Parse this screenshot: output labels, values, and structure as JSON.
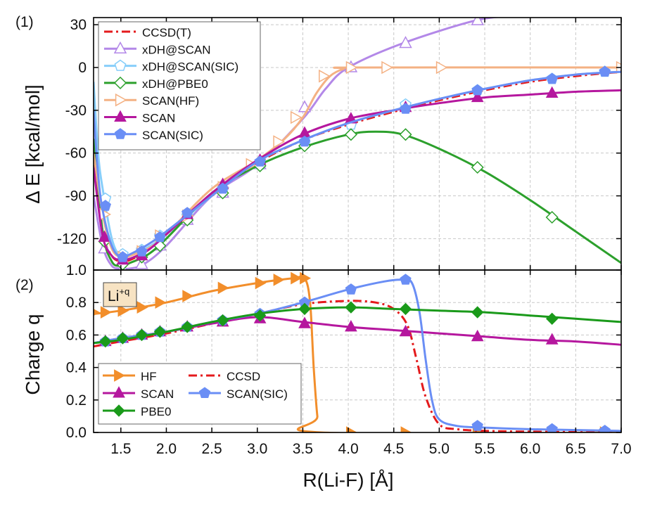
{
  "chart_data": [
    {
      "panel_label": "(1)",
      "type": "line",
      "ylabel": "Δ E [kcal/mol]",
      "xlim": [
        1.2,
        7.0
      ],
      "ylim": [
        -142,
        35
      ],
      "yticks": [
        30,
        0,
        -30,
        -60,
        -90,
        -120
      ],
      "ytick_labels": [
        "30",
        "0",
        "-30",
        "-60",
        "-90",
        "-120"
      ],
      "grid": true,
      "legend_position": "top-left",
      "series": [
        {
          "name": "CCSD(T)",
          "color": "#e41a1c",
          "dash": "dashdot",
          "marker": "none",
          "x": [
            1.2,
            1.3,
            1.4,
            1.5,
            1.6,
            1.8,
            2.0,
            2.2,
            2.5,
            3.0,
            3.5,
            4.0,
            4.5,
            5.0,
            5.5,
            6.0,
            6.5,
            7.0
          ],
          "y": [
            -60,
            -115,
            -132,
            -136,
            -135,
            -128,
            -117,
            -106,
            -90,
            -67,
            -51,
            -40,
            -31,
            -23,
            -16,
            -10,
            -6,
            -3
          ]
        },
        {
          "name": "xDH@SCAN",
          "color": "#b388e8",
          "marker": "triangle-open",
          "x": [
            1.2,
            1.3,
            1.4,
            1.5,
            1.6,
            1.75,
            2.0,
            2.5,
            3.0,
            3.5,
            3.75,
            4.0,
            4.6,
            5.4,
            5.8
          ],
          "y": [
            -90,
            -125,
            -139,
            -141,
            -141,
            -138,
            -125,
            -90,
            -68,
            -36,
            -15,
            0,
            17,
            33,
            36
          ],
          "marker_x": [
            1.32,
            1.52,
            1.73,
            1.93,
            2.23,
            2.62,
            3.03,
            3.52,
            4.03,
            4.63,
            5.42
          ],
          "marker_y": [
            -127,
            -141,
            -138,
            -125,
            -107,
            -88,
            -68,
            -28,
            0,
            17,
            33
          ]
        },
        {
          "name": "xDH@SCAN(SIC)",
          "color": "#87cefa",
          "marker": "pentagon-open",
          "x": [
            1.2,
            1.25,
            1.3,
            1.4,
            1.5,
            1.6,
            1.8,
            2.0,
            2.5,
            3.0,
            3.5,
            4.0,
            4.5,
            5.0,
            5.5,
            6.0,
            6.5,
            7.0
          ],
          "y": [
            -10,
            -60,
            -85,
            -120,
            -133,
            -132,
            -126,
            -117,
            -90,
            -66,
            -51,
            -39,
            -30,
            -22,
            -15,
            -9,
            -5,
            -3
          ],
          "marker_x": [
            1.33,
            1.52,
            1.73,
            1.93,
            2.23,
            2.62,
            3.03,
            3.52,
            4.03,
            4.63,
            5.42,
            6.24,
            6.82
          ],
          "marker_y": [
            -92,
            -131,
            -128,
            -118,
            -104,
            -86,
            -68,
            -53,
            -40,
            -26,
            -16,
            -8,
            -3
          ]
        },
        {
          "name": "xDH@PBE0",
          "color": "#2ca02c",
          "marker": "diamond-open",
          "x": [
            1.2,
            1.3,
            1.4,
            1.5,
            1.6,
            1.8,
            2.0,
            2.5,
            3.0,
            3.5,
            4.0,
            4.3,
            4.6,
            5.0,
            5.5,
            6.0,
            6.5,
            7.0
          ],
          "y": [
            -50,
            -115,
            -136,
            -139,
            -137,
            -131,
            -120,
            -88,
            -69,
            -56,
            -47,
            -45,
            -47,
            -57,
            -73,
            -93,
            -115,
            -137
          ],
          "marker_x": [
            1.32,
            1.52,
            1.73,
            1.93,
            2.23,
            2.62,
            3.03,
            3.52,
            4.03,
            4.63,
            5.42,
            6.24
          ],
          "marker_y": [
            -122,
            -138,
            -133,
            -125,
            -107,
            -88,
            -69,
            -55,
            -47,
            -47,
            -70,
            -105
          ]
        },
        {
          "name": "SCAN(HF)",
          "color": "#f4b183",
          "marker": "triangle-right-open",
          "x": [
            1.2,
            1.3,
            1.4,
            1.5,
            1.6,
            1.8,
            2.0,
            2.5,
            3.0,
            3.3,
            3.5,
            3.65,
            3.8,
            3.95,
            4.1,
            7.0
          ],
          "y": [
            -60,
            -103,
            -127,
            -133,
            -132,
            -127,
            -117,
            -85,
            -65,
            -50,
            -35,
            -18,
            -6,
            -1,
            0,
            0
          ],
          "marker_x": [
            1.32,
            1.52,
            1.73,
            1.93,
            2.23,
            2.62,
            2.93,
            3.23,
            3.42,
            3.73,
            4.03,
            4.42,
            5.02,
            7.0
          ],
          "marker_y": [
            -103,
            -133,
            -129,
            -118,
            -104,
            -84,
            -68,
            -52,
            -35,
            -6,
            0,
            0,
            0,
            0
          ]
        },
        {
          "name": "SCAN",
          "color": "#b5179e",
          "marker": "triangle-filled",
          "x": [
            1.2,
            1.3,
            1.4,
            1.5,
            1.6,
            1.8,
            2.0,
            2.5,
            3.0,
            3.5,
            4.0,
            4.5,
            5.0,
            5.5,
            6.0,
            6.5,
            7.0
          ],
          "y": [
            -70,
            -118,
            -132,
            -135,
            -134,
            -128,
            -117,
            -88,
            -65,
            -47,
            -36,
            -30,
            -25,
            -21,
            -19,
            -17,
            -16
          ],
          "marker_x": [
            1.32,
            1.52,
            1.73,
            2.23,
            2.62,
            3.03,
            3.52,
            4.03,
            4.63,
            5.42,
            6.24
          ],
          "marker_y": [
            -119,
            -135,
            -132,
            -103,
            -82,
            -65,
            -46,
            -36,
            -28,
            -21,
            -18
          ]
        },
        {
          "name": "SCAN(SIC)",
          "color": "#6a8ef5",
          "marker": "pentagon-filled",
          "x": [
            1.2,
            1.25,
            1.3,
            1.4,
            1.5,
            1.6,
            1.8,
            2.0,
            2.5,
            3.0,
            3.5,
            4.0,
            4.5,
            5.0,
            5.5,
            6.0,
            6.5,
            7.0
          ],
          "y": [
            -30,
            -75,
            -100,
            -125,
            -133,
            -131,
            -124,
            -115,
            -90,
            -66,
            -51,
            -39,
            -30,
            -22,
            -15,
            -9,
            -5,
            -3
          ],
          "marker_x": [
            1.33,
            1.52,
            1.73,
            1.93,
            2.23,
            2.62,
            3.03,
            3.52,
            4.63,
            5.42,
            6.24,
            6.82
          ],
          "marker_y": [
            -97,
            -133,
            -129,
            -119,
            -102,
            -85,
            -66,
            -52,
            -29,
            -16,
            -8,
            -3
          ]
        }
      ]
    },
    {
      "panel_label": "(2)",
      "type": "line",
      "ylabel": "Charge q",
      "xlabel": "R(Li-F) [Å]",
      "xlim": [
        1.2,
        7.0
      ],
      "ylim": [
        0,
        1.0
      ],
      "xticks": [
        1.5,
        2.0,
        2.5,
        3.0,
        3.5,
        4.0,
        4.5,
        5.0,
        5.5,
        6.0,
        6.5,
        7.0
      ],
      "xtick_labels": [
        "1.5",
        "2.0",
        "2.5",
        "3.0",
        "3.5",
        "4.0",
        "4.5",
        "5.0",
        "5.5",
        "6.0",
        "6.5",
        "7.0"
      ],
      "yticks": [
        0.0,
        0.2,
        0.4,
        0.6,
        0.8,
        1.0
      ],
      "ytick_labels": [
        "0.0",
        "0.2",
        "0.4",
        "0.6",
        "0.8",
        "1.0"
      ],
      "grid": true,
      "annotation": {
        "base": "Li",
        "superscript": "+q"
      },
      "legend_position": "bottom-left",
      "series": [
        {
          "name": "HF",
          "color": "#f28e2b",
          "marker": "triangle-right-filled",
          "x": [
            1.2,
            1.5,
            2.0,
            2.5,
            3.0,
            3.4,
            3.52,
            3.58,
            3.62,
            3.66,
            3.7,
            7.0
          ],
          "y": [
            0.73,
            0.75,
            0.8,
            0.87,
            0.92,
            0.95,
            0.95,
            0.8,
            0.4,
            0.1,
            0.0,
            0.0
          ],
          "marker_x": [
            1.2,
            1.33,
            1.52,
            1.73,
            1.93,
            2.23,
            2.62,
            3.03,
            3.23,
            3.42,
            3.52,
            4.03,
            4.63,
            5.42,
            6.24,
            6.82
          ],
          "marker_y": [
            0.74,
            0.74,
            0.75,
            0.77,
            0.8,
            0.84,
            0.89,
            0.92,
            0.94,
            0.95,
            0.95,
            0.0,
            0.0,
            0.0,
            0.0,
            0.0
          ]
        },
        {
          "name": "CCSD",
          "color": "#e41a1c",
          "dash": "dashdot",
          "marker": "none",
          "x": [
            1.2,
            1.5,
            2.0,
            2.5,
            3.0,
            3.5,
            4.0,
            4.3,
            4.5,
            4.65,
            4.75,
            4.85,
            5.0,
            5.2,
            5.5,
            6.0,
            7.0
          ],
          "y": [
            0.53,
            0.56,
            0.61,
            0.67,
            0.73,
            0.79,
            0.81,
            0.8,
            0.76,
            0.66,
            0.45,
            0.22,
            0.05,
            0.02,
            0.01,
            0.005,
            0.0
          ]
        },
        {
          "name": "SCAN",
          "color": "#b5179e",
          "marker": "triangle-filled",
          "x": [
            1.2,
            1.5,
            2.0,
            2.5,
            3.0,
            3.5,
            4.0,
            4.5,
            5.0,
            5.5,
            6.0,
            6.5,
            7.0
          ],
          "y": [
            0.55,
            0.58,
            0.62,
            0.67,
            0.71,
            0.68,
            0.65,
            0.63,
            0.61,
            0.59,
            0.57,
            0.56,
            0.54
          ],
          "marker_x": [
            1.33,
            1.52,
            1.73,
            1.93,
            2.23,
            2.62,
            3.03,
            3.52,
            4.03,
            4.63,
            5.42,
            6.24
          ],
          "marker_y": [
            0.56,
            0.58,
            0.6,
            0.62,
            0.65,
            0.68,
            0.7,
            0.67,
            0.65,
            0.62,
            0.59,
            0.57
          ]
        },
        {
          "name": "SCAN(SIC)",
          "color": "#6a8ef5",
          "marker": "pentagon-filled",
          "x": [
            1.2,
            1.5,
            2.0,
            2.5,
            3.0,
            3.5,
            4.0,
            4.4,
            4.6,
            4.7,
            4.78,
            4.85,
            4.92,
            5.0,
            5.2,
            5.5,
            6.0,
            7.0
          ],
          "y": [
            0.55,
            0.58,
            0.62,
            0.68,
            0.73,
            0.8,
            0.88,
            0.93,
            0.94,
            0.92,
            0.75,
            0.45,
            0.2,
            0.08,
            0.04,
            0.03,
            0.02,
            0.01
          ],
          "marker_x": [
            1.33,
            1.52,
            1.73,
            1.93,
            2.23,
            2.62,
            3.03,
            3.52,
            4.03,
            4.63,
            5.42,
            6.24,
            6.82
          ],
          "marker_y": [
            0.56,
            0.58,
            0.6,
            0.62,
            0.65,
            0.69,
            0.73,
            0.8,
            0.88,
            0.94,
            0.04,
            0.02,
            0.01
          ]
        },
        {
          "name": "PBE0",
          "color": "#1a9a1a",
          "marker": "diamond-filled",
          "x": [
            1.2,
            1.5,
            2.0,
            2.5,
            3.0,
            3.5,
            4.0,
            4.5,
            5.0,
            5.5,
            6.0,
            6.5,
            7.0
          ],
          "y": [
            0.55,
            0.57,
            0.62,
            0.68,
            0.73,
            0.76,
            0.77,
            0.76,
            0.75,
            0.74,
            0.72,
            0.7,
            0.68
          ],
          "marker_x": [
            1.33,
            1.52,
            1.73,
            1.93,
            2.23,
            2.62,
            3.03,
            3.52,
            4.03,
            4.63,
            5.42,
            6.24
          ],
          "marker_y": [
            0.56,
            0.58,
            0.6,
            0.62,
            0.65,
            0.69,
            0.72,
            0.76,
            0.77,
            0.76,
            0.74,
            0.7
          ]
        }
      ]
    }
  ]
}
